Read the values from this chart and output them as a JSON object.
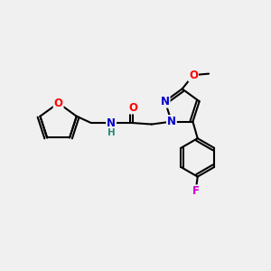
{
  "bg_color": "#f0f0f0",
  "bond_color": "#000000",
  "bond_width": 1.5,
  "atom_colors": {
    "N": "#0000cc",
    "O": "#ff0000",
    "F": "#cc00cc",
    "C": "#000000",
    "H": "#2a8a7a"
  },
  "font_size": 8.5,
  "fig_size": [
    3.0,
    3.0
  ],
  "dpi": 100,
  "xlim": [
    0,
    10
  ],
  "ylim": [
    0,
    10
  ]
}
